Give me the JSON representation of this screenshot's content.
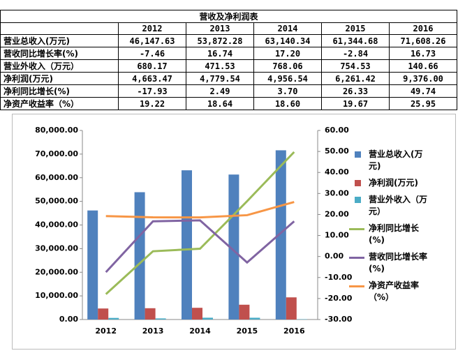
{
  "table": {
    "title": "营收及净利润表",
    "header": [
      "2012",
      "2013",
      "2014",
      "2015",
      "2016"
    ],
    "rows": [
      [
        "营业总收入(万元)",
        "46,147.63",
        "53,872.28",
        "63,140.34",
        "61,344.68",
        "71,608.26"
      ],
      [
        "营收同比增长率(%)",
        "-7.46",
        "16.74",
        "17.20",
        "-2.84",
        "16.73"
      ],
      [
        "营业外收入（万元）",
        "680.17",
        "471.53",
        "768.06",
        "754.53",
        "140.66"
      ],
      [
        "净利润(万元)",
        "4,663.47",
        "4,779.54",
        "4,956.54",
        "6,261.42",
        "9,376.00"
      ],
      [
        "净利同比增长(%)",
        "-17.93",
        "2.49",
        "3.70",
        "26.33",
        "49.74"
      ],
      [
        "净资产收益率（%）",
        "19.22",
        "18.64",
        "18.60",
        "19.67",
        "25.95"
      ]
    ]
  },
  "chart_data": {
    "type": "bar-line",
    "categories": [
      "2012",
      "2013",
      "2014",
      "2015",
      "2016"
    ],
    "ylim": [
      0,
      80000
    ],
    "yticks": [
      {
        "value": 0,
        "label": "0.00"
      },
      {
        "value": 10000,
        "label": "10,000.00"
      },
      {
        "value": 20000,
        "label": "20,000.00"
      },
      {
        "value": 30000,
        "label": "30,000.00"
      },
      {
        "value": 40000,
        "label": "40,000.00"
      },
      {
        "value": 50000,
        "label": "50,000.00"
      },
      {
        "value": 60000,
        "label": "60,000.00"
      },
      {
        "value": 70000,
        "label": "70,000.00"
      },
      {
        "value": 80000,
        "label": "80,000.00"
      }
    ],
    "y2lim": [
      -30,
      60
    ],
    "y2ticks": [
      {
        "value": -30,
        "label": "-30.00"
      },
      {
        "value": -20,
        "label": "-20.00"
      },
      {
        "value": -10,
        "label": "-10.00"
      },
      {
        "value": 0,
        "label": "0.00"
      },
      {
        "value": 10,
        "label": "10.00"
      },
      {
        "value": 20,
        "label": "20.00"
      },
      {
        "value": 30,
        "label": "30.00"
      },
      {
        "value": 40,
        "label": "40.00"
      },
      {
        "value": 50,
        "label": "50.00"
      },
      {
        "value": 60,
        "label": "60.00"
      }
    ],
    "legend": "right",
    "series": [
      {
        "name": "营业总收入(万元)",
        "type": "bar",
        "color": "#4f81bd",
        "values": [
          46147.63,
          53872.28,
          63140.34,
          61344.68,
          71608.26
        ]
      },
      {
        "name": "净利润(万元)",
        "type": "bar",
        "color": "#c0504d",
        "values": [
          4663.47,
          4779.54,
          4956.54,
          6261.42,
          9376.0
        ]
      },
      {
        "name": "营业外收入（万元）",
        "type": "bar",
        "color": "#4bacc6",
        "values": [
          680.17,
          471.53,
          768.06,
          754.53,
          140.66
        ]
      },
      {
        "name": "净利同比增长(%)",
        "type": "line",
        "axis": "y2",
        "color": "#9bbb59",
        "values": [
          -17.93,
          2.49,
          3.7,
          26.33,
          49.74
        ]
      },
      {
        "name": "营收同比增长率(%)",
        "type": "line",
        "axis": "y2",
        "color": "#8064a2",
        "values": [
          -7.46,
          16.74,
          17.2,
          -2.84,
          16.73
        ]
      },
      {
        "name": "净资产收益率（%）",
        "type": "line",
        "axis": "y2",
        "color": "#f79646",
        "values": [
          19.22,
          18.64,
          18.6,
          19.67,
          25.95
        ]
      }
    ]
  }
}
